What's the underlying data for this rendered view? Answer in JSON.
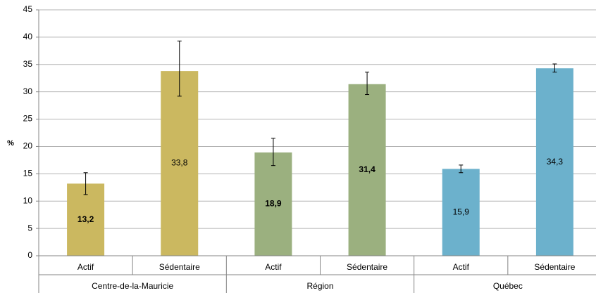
{
  "chart_data": {
    "type": "bar",
    "ylabel": "%",
    "ylim": [
      0,
      45
    ],
    "yticks": [
      "0",
      "5",
      "10",
      "15",
      "20",
      "25",
      "30",
      "35",
      "40",
      "45"
    ],
    "grid": true,
    "groups": [
      {
        "name": "Centre-de-la-Mauricie",
        "color": "#cbb860",
        "bars": [
          {
            "category": "Actif",
            "value": 13.2,
            "label": "13,2",
            "label_bold": true,
            "err_low": 11.2,
            "err_high": 15.2
          },
          {
            "category": "Sédentaire",
            "value": 33.8,
            "label": "33,8",
            "label_bold": false,
            "err_low": 29.2,
            "err_high": 39.3
          }
        ]
      },
      {
        "name": "Région",
        "color": "#9bb07f",
        "bars": [
          {
            "category": "Actif",
            "value": 18.9,
            "label": "18,9",
            "label_bold": true,
            "err_low": 16.5,
            "err_high": 21.5
          },
          {
            "category": "Sédentaire",
            "value": 31.4,
            "label": "31,4",
            "label_bold": true,
            "err_low": 29.5,
            "err_high": 33.6
          }
        ]
      },
      {
        "name": "Québec",
        "color": "#6cb1cc",
        "bars": [
          {
            "category": "Actif",
            "value": 15.9,
            "label": "15,9",
            "label_bold": false,
            "err_low": 15.2,
            "err_high": 16.6
          },
          {
            "category": "Sédentaire",
            "value": 34.3,
            "label": "34,3",
            "label_bold": false,
            "err_low": 33.6,
            "err_high": 35.1
          }
        ]
      }
    ]
  }
}
